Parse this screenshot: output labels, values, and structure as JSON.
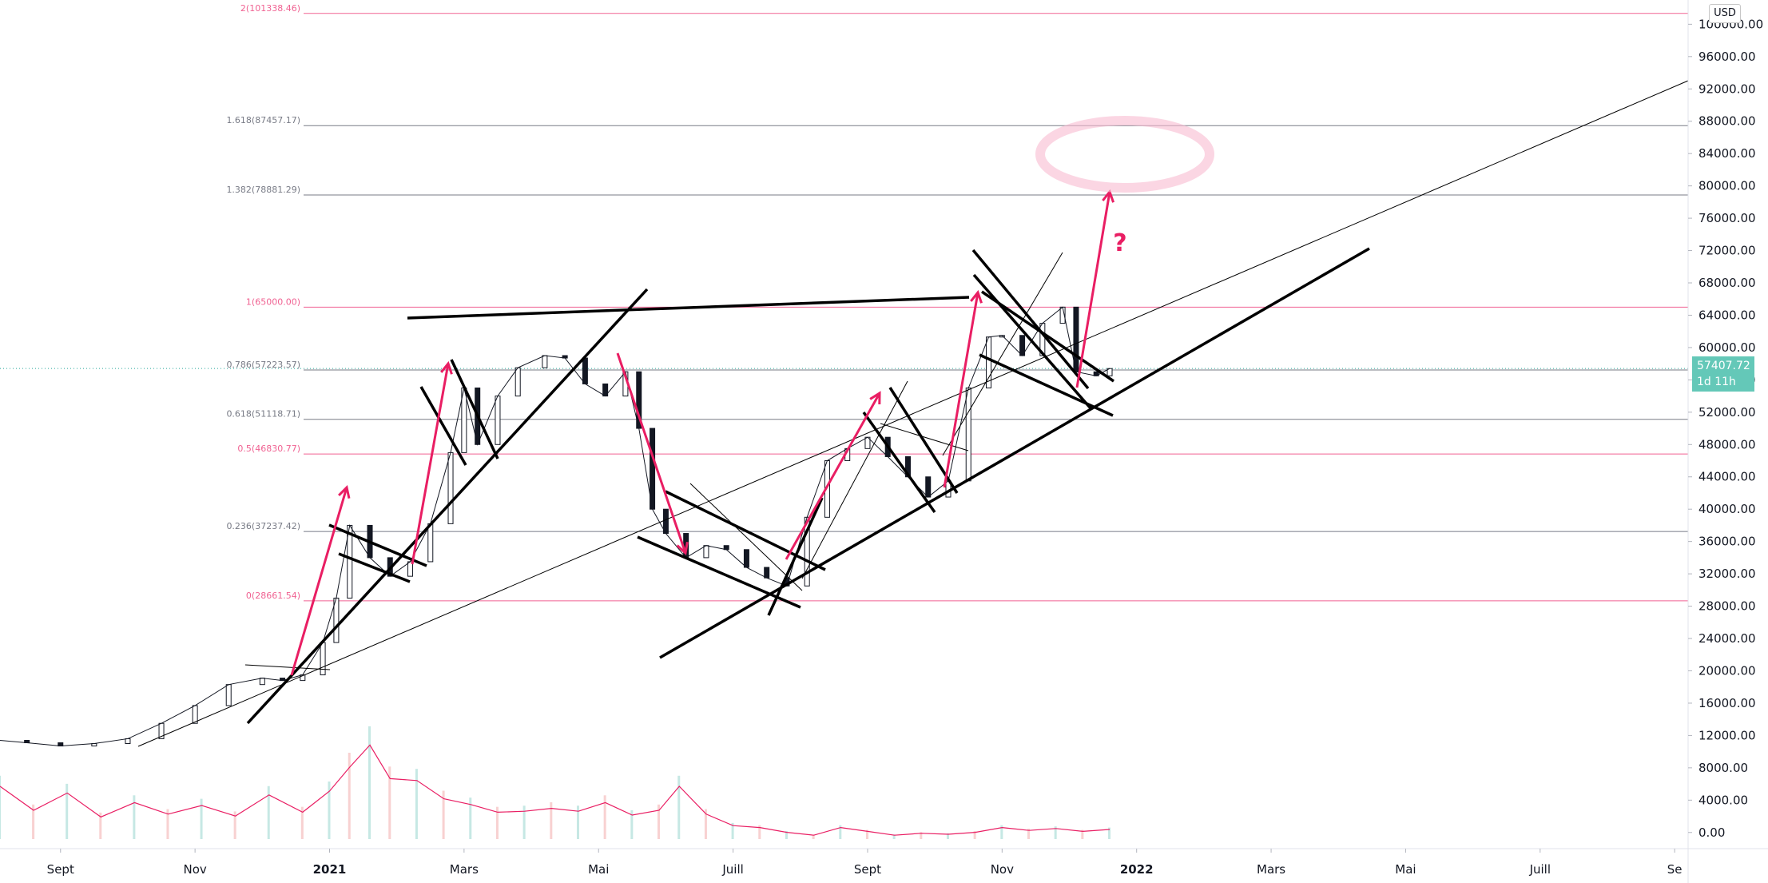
{
  "chart_data": {
    "type": "line",
    "title": "",
    "currency": "USD",
    "current_price": "57407.72",
    "countdown": "1d 11h",
    "y_axis": {
      "ticks": [
        100000,
        96000,
        92000,
        88000,
        84000,
        80000,
        76000,
        72000,
        68000,
        64000,
        60000,
        56000,
        52000,
        48000,
        44000,
        40000,
        36000,
        32000,
        28000,
        24000,
        20000,
        16000,
        12000,
        8000,
        4000,
        0
      ],
      "tick_labels": [
        "100000.00",
        "96000.00",
        "92000.00",
        "88000.00",
        "84000.00",
        "80000.00",
        "76000.00",
        "72000.00",
        "68000.00",
        "64000.00",
        "60000.00",
        "56000.00",
        "52000.00",
        "48000.00",
        "44000.00",
        "40000.00",
        "36000.00",
        "32000.00",
        "28000.00",
        "24000.00",
        "20000.00",
        "16000.00",
        "12000.00",
        "8000.00",
        "4000.00",
        "0.00"
      ],
      "range": [
        -2000,
        103000
      ]
    },
    "x_axis": {
      "tick_labels": [
        "Sept",
        "Nov",
        "2021",
        "Mars",
        "Mai",
        "Juill",
        "Sept",
        "Nov",
        "2022",
        "Mars",
        "Mai",
        "Juill",
        "Se"
      ],
      "bold": [
        false,
        false,
        true,
        false,
        false,
        false,
        false,
        false,
        true,
        false,
        false,
        false,
        false
      ],
      "tick_months": [
        0,
        2,
        4,
        6,
        8,
        10,
        12,
        14,
        16,
        18,
        20,
        22,
        24
      ],
      "range_months": [
        -0.9,
        24.2
      ],
      "month_zero": "2020-09"
    },
    "fib_levels": [
      {
        "label": "2(101338.46)",
        "value": 101338.46,
        "color": "#f06292"
      },
      {
        "label": "1.618(87457.17)",
        "value": 87457.17,
        "color": "#787b86"
      },
      {
        "label": "1.382(78881.29)",
        "value": 78881.29,
        "color": "#787b86"
      },
      {
        "label": "1(65000.00)",
        "value": 65000.0,
        "color": "#f06292"
      },
      {
        "label": "0.786(57223.57)",
        "value": 57223.57,
        "color": "#787b86"
      },
      {
        "label": "0.618(51118.71)",
        "value": 51118.71,
        "color": "#787b86"
      },
      {
        "label": "0.5(46830.77)",
        "value": 46830.77,
        "color": "#f06292"
      },
      {
        "label": "0.236(37237.42)",
        "value": 37237.42,
        "color": "#787b86"
      },
      {
        "label": "0(28661.54)",
        "value": 28661.54,
        "color": "#f06292"
      }
    ],
    "price_series": {
      "name": "",
      "x_months": [
        -0.9,
        -0.5,
        0,
        0.5,
        1,
        1.5,
        2,
        2.5,
        3,
        3.3,
        3.6,
        3.9,
        4.1,
        4.3,
        4.6,
        4.9,
        5.2,
        5.5,
        5.8,
        6.0,
        6.2,
        6.5,
        6.8,
        7.2,
        7.5,
        7.8,
        8.1,
        8.4,
        8.6,
        8.8,
        9.0,
        9.3,
        9.6,
        9.9,
        10.2,
        10.5,
        10.8,
        11.1,
        11.4,
        11.7,
        12.0,
        12.3,
        12.6,
        12.9,
        13.2,
        13.5,
        13.8,
        14.0,
        14.3,
        14.6,
        14.9,
        15.1,
        15.4,
        15.6
      ],
      "y": [
        11400,
        11100,
        10700,
        11000,
        11600,
        13500,
        15700,
        18300,
        19100,
        18800,
        19500,
        23500,
        29000,
        38000,
        34000,
        31700,
        33500,
        38200,
        47000,
        55000,
        48000,
        54000,
        57500,
        59000,
        58700,
        55500,
        54000,
        57000,
        50000,
        40000,
        37000,
        34000,
        35500,
        35000,
        32800,
        31500,
        30500,
        39000,
        46000,
        47500,
        48900,
        46500,
        44000,
        41500,
        43500,
        55000,
        61300,
        61500,
        59000,
        63000,
        65000,
        57000,
        56500,
        57400
      ]
    },
    "volume_series": {
      "name": "",
      "x_months": [
        -0.9,
        -0.4,
        0.1,
        0.6,
        1.1,
        1.6,
        2.1,
        2.6,
        3.1,
        3.6,
        4.0,
        4.3,
        4.6,
        4.9,
        5.3,
        5.7,
        6.1,
        6.5,
        6.9,
        7.3,
        7.7,
        8.1,
        8.5,
        8.9,
        9.2,
        9.6,
        10.0,
        10.4,
        10.8,
        11.2,
        11.6,
        12.0,
        12.4,
        12.8,
        13.2,
        13.6,
        14.0,
        14.4,
        14.8,
        15.2,
        15.6
      ],
      "y": [
        5500,
        3000,
        4800,
        2300,
        3800,
        2600,
        3500,
        2400,
        4600,
        2800,
        5000,
        7500,
        9800,
        6300,
        6100,
        4200,
        3600,
        2800,
        2900,
        3200,
        2900,
        3800,
        2500,
        3000,
        5500,
        2600,
        1400,
        1200,
        700,
        400,
        1200,
        800,
        400,
        600,
        500,
        700,
        1200,
        900,
        1100,
        800,
        1000
      ]
    },
    "annotations": [
      "?"
    ]
  }
}
